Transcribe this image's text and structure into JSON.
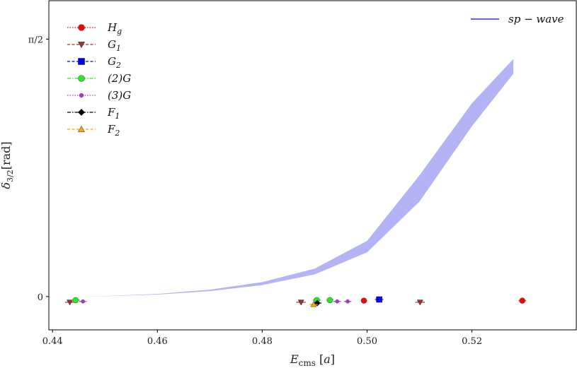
{
  "chart_data": {
    "type": "scatter",
    "xlabel": "E_cms [a]",
    "ylabel": "δ_3/2 [rad]",
    "xlim": [
      0.4393,
      0.5399
    ],
    "ylim": [
      -0.2034,
      1.8055
    ],
    "x_ticks": [
      {
        "value": 0.44,
        "label": "0.44"
      },
      {
        "value": 0.46,
        "label": "0.46"
      },
      {
        "value": 0.48,
        "label": "0.48"
      },
      {
        "value": 0.5,
        "label": "0.50"
      },
      {
        "value": 0.52,
        "label": "0.52"
      }
    ],
    "y_ticks": [
      {
        "value": 0,
        "label": "0"
      },
      {
        "value": 1.5708,
        "label": "π/2"
      }
    ],
    "grid": false,
    "legend_placement": "top-left",
    "band": {
      "name": "sp − wave",
      "color": "#b3b3f5",
      "line_color": "#3333cc",
      "legend_placement": "top-right",
      "x": [
        0.4433,
        0.45,
        0.46,
        0.47,
        0.48,
        0.49,
        0.5,
        0.51,
        0.52,
        0.5279
      ],
      "lower": [
        0.0,
        0.002,
        0.012,
        0.033,
        0.07,
        0.135,
        0.27,
        0.58,
        1.04,
        1.36
      ],
      "upper": [
        0.0,
        0.003,
        0.016,
        0.042,
        0.088,
        0.17,
        0.34,
        0.74,
        1.18,
        1.45
      ]
    },
    "series": [
      {
        "name": "H_g",
        "color": "#ff0000",
        "marker": "circle",
        "line": "dotted",
        "x": [
          0.4994,
          0.5296
        ],
        "y": [
          -0.025,
          -0.025
        ],
        "xerr": [
          0.0006,
          0.0007
        ]
      },
      {
        "name": "G_1",
        "color": "#a0322d",
        "marker": "triangle-down",
        "line": "dashed",
        "x": [
          0.4433,
          0.4874,
          0.5101
        ],
        "y": [
          -0.035,
          -0.035,
          -0.035
        ],
        "xerr": [
          0.0009,
          0.0009,
          0.0009
        ]
      },
      {
        "name": "G_2",
        "color": "#0000ff",
        "marker": "square",
        "line": "dashed",
        "x": [
          0.5023
        ],
        "y": [
          -0.018
        ],
        "xerr": [
          0.0008
        ],
        "yerr": [
          0.018
        ]
      },
      {
        "name": "(2)G",
        "color": "#22ee22",
        "marker": "circle",
        "line": "dashdot",
        "x": [
          0.4444,
          0.4904,
          0.4929
        ],
        "y": [
          -0.022,
          -0.022,
          -0.022
        ],
        "xerr": [
          0.0008,
          0.0008,
          0.0007
        ]
      },
      {
        "name": "(3)G",
        "color": "#b232d8",
        "marker": "small-circle",
        "line": "dotted",
        "x": [
          0.4458,
          0.4943,
          0.4963
        ],
        "y": [
          -0.03,
          -0.03,
          -0.03
        ],
        "xerr": [
          0.0007,
          0.0007,
          0.0007
        ]
      },
      {
        "name": "F_1",
        "color": "#000000",
        "marker": "diamond",
        "line": "dashdot",
        "x": [
          0.4905
        ],
        "y": [
          -0.04
        ],
        "xerr": [
          0.0008
        ]
      },
      {
        "name": "F_2",
        "color": "#ffa500",
        "marker": "triangle-up",
        "line": "dashed",
        "x": [
          0.4898
        ],
        "y": [
          -0.048
        ],
        "xerr": [
          0.0008
        ]
      }
    ]
  }
}
